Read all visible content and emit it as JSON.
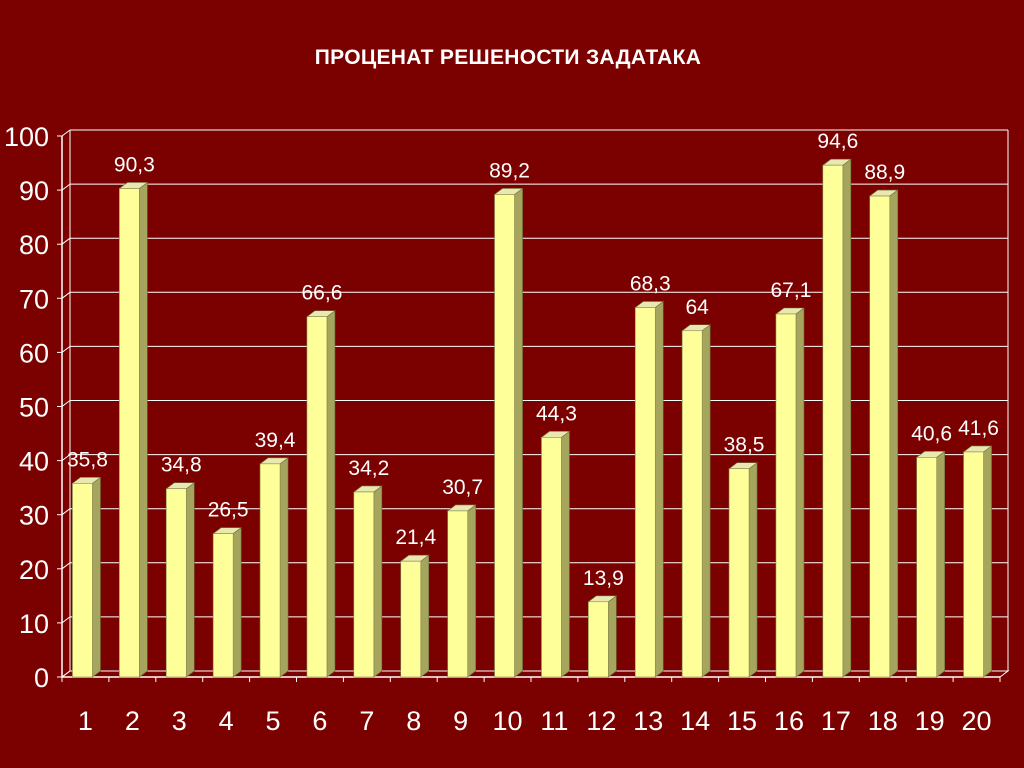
{
  "chart_data": {
    "type": "bar",
    "title": "ПРОЦЕНАТ РЕШЕНОСТИ ЗАДАТАКА",
    "categories": [
      "1",
      "2",
      "3",
      "4",
      "5",
      "6",
      "7",
      "8",
      "9",
      "10",
      "11",
      "12",
      "13",
      "14",
      "15",
      "16",
      "17",
      "18",
      "19",
      "20"
    ],
    "values": [
      35.8,
      90.3,
      34.8,
      26.5,
      39.4,
      66.6,
      34.2,
      21.4,
      30.7,
      89.2,
      44.3,
      13.9,
      68.3,
      64,
      38.5,
      67.1,
      94.6,
      88.9,
      40.6,
      41.6
    ],
    "value_labels": [
      "35,8",
      "90,3",
      "34,8",
      "26,5",
      "39,4",
      "66,6",
      "34,2",
      "21,4",
      "30,7",
      "89,2",
      "44,3",
      "13,9",
      "68,3",
      "64",
      "38,5",
      "67,1",
      "94,6",
      "88,9",
      "40,6",
      "41,6"
    ],
    "yticks": [
      "0",
      "10",
      "20",
      "30",
      "40",
      "50",
      "60",
      "70",
      "80",
      "90",
      "100"
    ],
    "ylim": [
      0,
      100
    ],
    "grid": true,
    "legend": "none",
    "colors": {
      "background": "#7b0000",
      "bar_front": "#ffff99",
      "bar_side": "#a5a55e",
      "bar_top": "#e8e8b0",
      "grid": "#ffffff",
      "text": "#ffffff"
    }
  }
}
